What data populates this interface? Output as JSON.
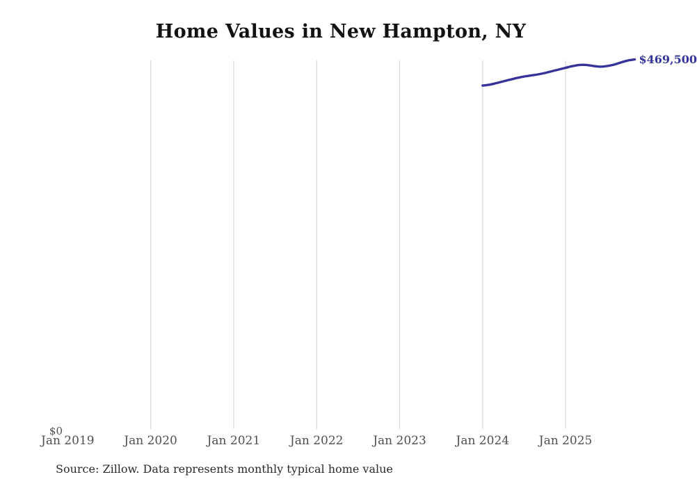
{
  "page": {
    "title": "Home Values in New Hampton, NY",
    "source_note": "Source: Zillow. Data represents monthly typical home value"
  },
  "axes": {
    "y_zero_label": "$0",
    "x_ticks": [
      "Jan 2019",
      "Jan 2020",
      "Jan 2021",
      "Jan 2022",
      "Jan 2023",
      "Jan 2024",
      "Jan 2025"
    ]
  },
  "line": {
    "end_label": "$469,500"
  },
  "colors": {
    "line": "#34349b",
    "end_label": "#34349b",
    "grid": "#d7d7d7",
    "axis_text": "#4f4f4f",
    "title": "#121212",
    "source": "#2a2a2a"
  },
  "chart_data": {
    "type": "line",
    "title": "Home Values in New Hampton, NY",
    "series_name": "Monthly typical home value",
    "x": [
      "Jan 2024",
      "Feb 2024",
      "Mar 2024",
      "Apr 2024",
      "May 2024",
      "Jun 2024",
      "Jul 2024",
      "Aug 2024",
      "Sep 2024",
      "Oct 2024",
      "Nov 2024",
      "Dec 2024",
      "Jan 2025",
      "Feb 2025",
      "Mar 2025",
      "Apr 2025",
      "May 2025",
      "Jun 2025",
      "Jul 2025",
      "Aug 2025",
      "Sep 2025",
      "Oct 2025",
      "Nov 2025"
    ],
    "values": [
      436300,
      437400,
      439500,
      441700,
      443900,
      446000,
      447800,
      449200,
      450500,
      452300,
      454500,
      456700,
      458900,
      461000,
      462500,
      462500,
      461200,
      460300,
      461100,
      462900,
      465600,
      468100,
      469500
    ],
    "end_annotation": "$469,500",
    "xlabel": "",
    "ylabel": "",
    "xlim": [
      "Jan 2019",
      "Dec 2025"
    ],
    "ylim": [
      0,
      470000
    ],
    "x_tick_labels": [
      "Jan 2019",
      "Jan 2020",
      "Jan 2021",
      "Jan 2022",
      "Jan 2023",
      "Jan 2024",
      "Jan 2025"
    ],
    "y_tick_labels": [
      "$0"
    ],
    "grid": "vertical-only",
    "legend": "none"
  }
}
